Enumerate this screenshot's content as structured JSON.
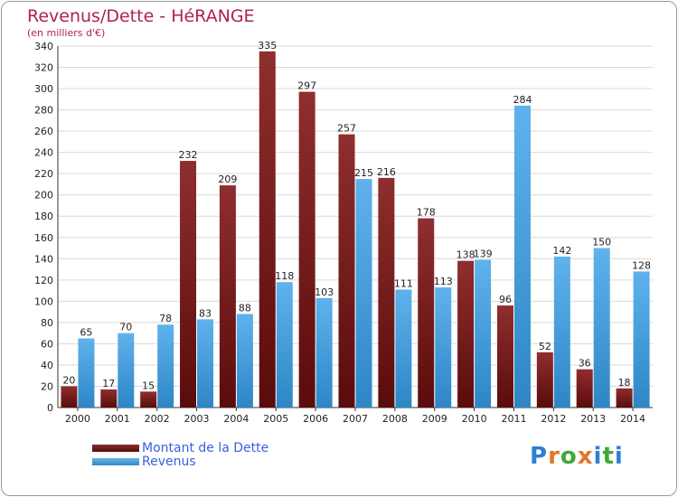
{
  "chart_data": {
    "type": "bar",
    "title": "Revenus/Dette - HéRANGE",
    "subtitle": "(en milliers d'€)",
    "categories": [
      "2000",
      "2001",
      "2002",
      "2003",
      "2004",
      "2005",
      "2006",
      "2007",
      "2008",
      "2009",
      "2010",
      "2011",
      "2012",
      "2013",
      "2014"
    ],
    "series": [
      {
        "name": "Montant de la Dette",
        "color": "#7a1c1c",
        "values": [
          20,
          17,
          15,
          232,
          209,
          335,
          297,
          257,
          216,
          178,
          138,
          96,
          52,
          36,
          18
        ]
      },
      {
        "name": "Revenus",
        "color": "#4aa3e0",
        "values": [
          65,
          70,
          78,
          83,
          88,
          118,
          103,
          215,
          111,
          113,
          139,
          284,
          142,
          150,
          128
        ]
      }
    ],
    "ylim": [
      0,
      340
    ],
    "yticks": [
      0,
      20,
      40,
      60,
      80,
      100,
      120,
      140,
      160,
      180,
      200,
      220,
      240,
      260,
      280,
      300,
      320,
      340
    ],
    "grid": true,
    "legend_position": "bottom-left"
  },
  "legend": {
    "dette_label": "Montant de la Dette",
    "revenus_label": "Revenus"
  },
  "logo": {
    "text": "Proxiti"
  }
}
